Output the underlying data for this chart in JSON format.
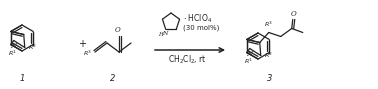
{
  "background_color": "#ffffff",
  "fig_width": 3.78,
  "fig_height": 0.89,
  "dpi": 100,
  "colors": {
    "structure": "#222222",
    "background": "#ffffff"
  },
  "text": {
    "label1": "1",
    "label2": "2",
    "label3": "3",
    "plus": "+",
    "catalyst_dot_hclo4": "· HClO₄",
    "catalyst_mol": "(30 mol%)",
    "solvent": "CH₂Cl₂, rt",
    "N": "N",
    "H": "H",
    "O": "O"
  }
}
